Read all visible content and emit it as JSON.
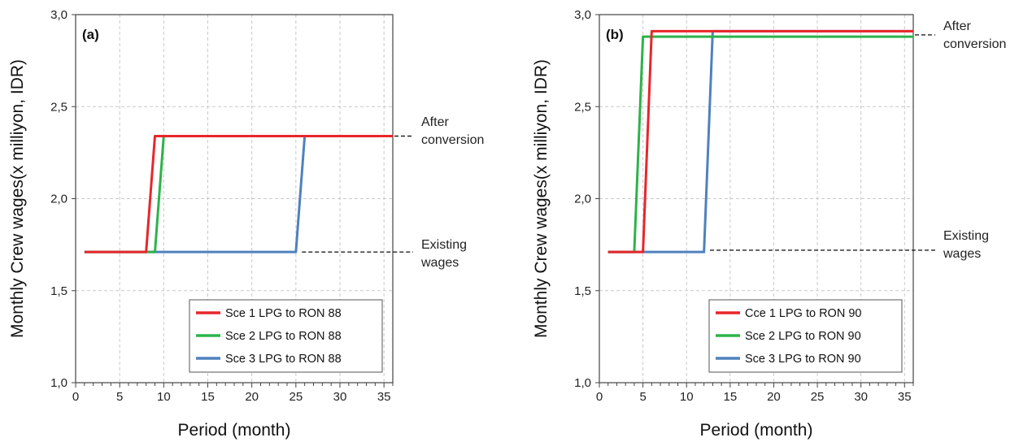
{
  "chart_data": [
    {
      "type": "line",
      "panel_label": "(a)",
      "xlabel": "Period (month)",
      "ylabel": "Monthly Crew wages(x milliyon, IDR)",
      "xlim": [
        0,
        36
      ],
      "ylim": [
        1.0,
        3.0
      ],
      "xticks": [
        0,
        5,
        10,
        15,
        20,
        25,
        30,
        35
      ],
      "yticks": [
        1.0,
        1.5,
        2.0,
        2.5,
        3.0
      ],
      "ytick_labels": [
        "1,0",
        "1,5",
        "2,0",
        "2,5",
        "3,0"
      ],
      "grid": true,
      "legend_position": "bottom-right",
      "series": [
        {
          "name": "Sce 1 LPG to RON 88",
          "color": "#e8262b",
          "x": [
            1,
            8,
            9,
            36
          ],
          "y": [
            1.71,
            1.71,
            2.34,
            2.34
          ]
        },
        {
          "name": "Sce 2 LPG to RON 88",
          "color": "#2db34a",
          "x": [
            1,
            9,
            10,
            36
          ],
          "y": [
            1.71,
            1.71,
            2.34,
            2.34
          ]
        },
        {
          "name": "Sce 3 LPG to RON 88",
          "color": "#4f81bd",
          "x": [
            1,
            25,
            26,
            36
          ],
          "y": [
            1.71,
            1.71,
            2.34,
            2.34
          ]
        }
      ],
      "annotations": [
        {
          "lines": [
            "After",
            "conversion"
          ],
          "y": 2.34,
          "x_from": 36
        },
        {
          "lines": [
            "Existing",
            "wages"
          ],
          "y": 1.71,
          "x_from": 25.5
        }
      ]
    },
    {
      "type": "line",
      "panel_label": "(b)",
      "xlabel": "Period (month)",
      "ylabel": "Monthly Crew wages(x milliyon, IDR)",
      "xlim": [
        0,
        36
      ],
      "ylim": [
        1.0,
        3.0
      ],
      "xticks": [
        0,
        5,
        10,
        15,
        20,
        25,
        30,
        35
      ],
      "yticks": [
        1.0,
        1.5,
        2.0,
        2.5,
        3.0
      ],
      "ytick_labels": [
        "1,0",
        "1,5",
        "2,0",
        "2,5",
        "3,0"
      ],
      "grid": true,
      "legend_position": "bottom-right",
      "series": [
        {
          "name": "Cce 1 LPG to RON 90",
          "color": "#e8262b",
          "x": [
            1,
            5,
            6,
            36
          ],
          "y": [
            1.71,
            1.71,
            2.91,
            2.91
          ]
        },
        {
          "name": "Sce 2 LPG to RON 90",
          "color": "#2db34a",
          "x": [
            1,
            4,
            5,
            36
          ],
          "y": [
            1.71,
            1.71,
            2.88,
            2.88
          ]
        },
        {
          "name": "Sce 3 LPG to RON 90",
          "color": "#4f81bd",
          "x": [
            1,
            12,
            13,
            36
          ],
          "y": [
            1.71,
            1.71,
            2.91,
            2.91
          ]
        }
      ],
      "annotations": [
        {
          "lines": [
            "After",
            "conversion"
          ],
          "y": 2.89,
          "x_from": 36
        },
        {
          "lines": [
            "Existing",
            "wages"
          ],
          "y": 1.72,
          "x_from": 12.5
        }
      ]
    }
  ]
}
